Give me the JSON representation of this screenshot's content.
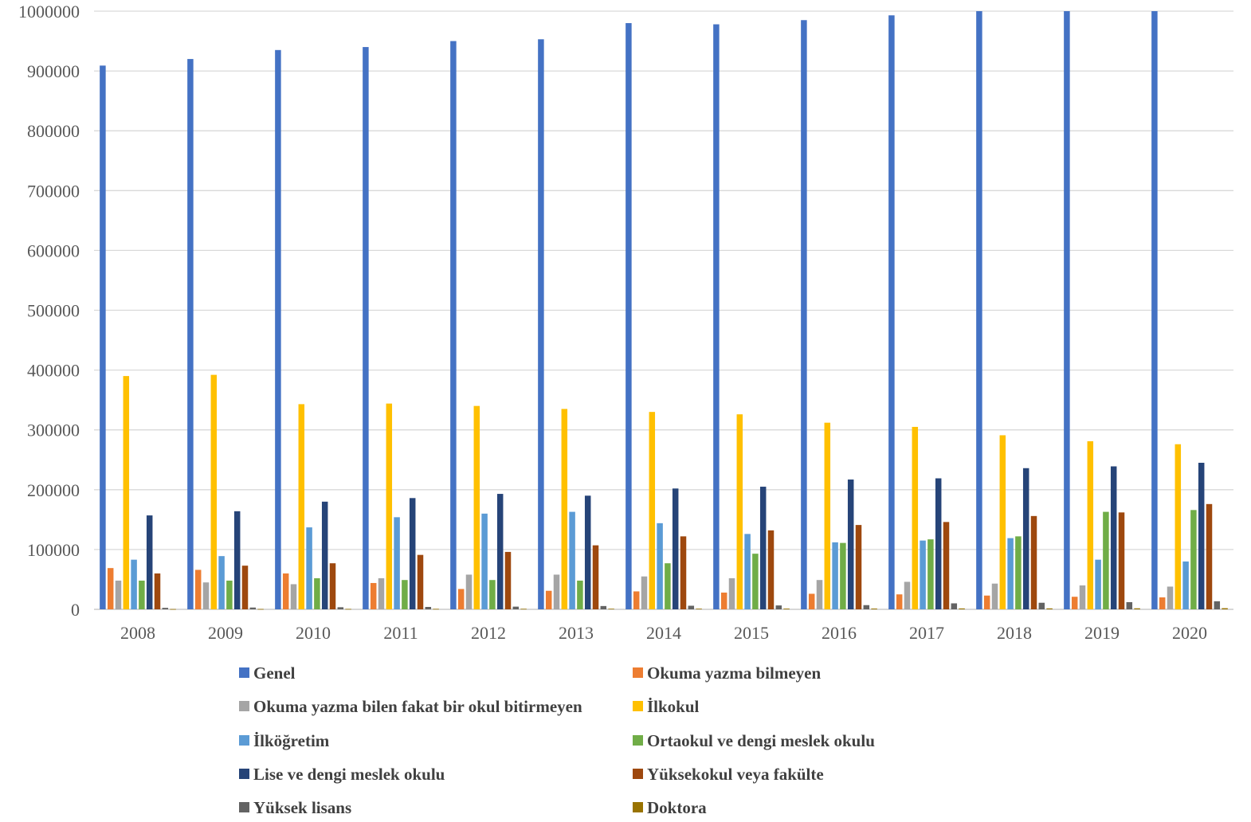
{
  "chart_data": {
    "type": "bar",
    "title": "",
    "xlabel": "",
    "ylabel": "",
    "ylim": [
      0,
      1000000
    ],
    "yticks": [
      "0",
      "100000",
      "200000",
      "300000",
      "400000",
      "500000",
      "600000",
      "700000",
      "800000",
      "900000",
      "1000000"
    ],
    "grid": "horizontal",
    "legend_position": "bottom",
    "categories": [
      "2008",
      "2009",
      "2010",
      "2011",
      "2012",
      "2013",
      "2014",
      "2015",
      "2016",
      "2017",
      "2018",
      "2019",
      "2020"
    ],
    "series": [
      {
        "name": "Genel",
        "color": "#4472C4",
        "values": [
          909000,
          920000,
          935000,
          940000,
          950000,
          953000,
          980000,
          978000,
          985000,
          993000,
          1000000,
          1000000,
          1000000
        ]
      },
      {
        "name": "Okuma yazma bilmeyen",
        "color": "#ED7D31",
        "values": [
          69000,
          66000,
          60000,
          44000,
          34000,
          31000,
          30000,
          28000,
          26000,
          25000,
          23000,
          21000,
          20000
        ]
      },
      {
        "name": "Okuma yazma bilen fakat bir okul bitirmeyen",
        "color": "#A5A5A5",
        "values": [
          48000,
          45000,
          42000,
          52000,
          58000,
          58000,
          55000,
          52000,
          49000,
          46000,
          43000,
          40000,
          38000
        ]
      },
      {
        "name": "İlkokul",
        "color": "#FFC000",
        "values": [
          390000,
          392000,
          343000,
          344000,
          340000,
          335000,
          330000,
          326000,
          312000,
          305000,
          291000,
          281000,
          276000
        ]
      },
      {
        "name": "İlköğretim",
        "color": "#5B9BD5",
        "values": [
          83000,
          89000,
          137000,
          154000,
          160000,
          163000,
          144000,
          126000,
          112000,
          115000,
          119000,
          83000,
          80000
        ]
      },
      {
        "name": "Ortaokul ve dengi meslek okulu",
        "color": "#70AD47",
        "values": [
          48000,
          48000,
          52000,
          49000,
          49000,
          48000,
          77000,
          93000,
          111000,
          117000,
          122000,
          163000,
          166000
        ]
      },
      {
        "name": "Lise ve dengi meslek okulu",
        "color": "#264478",
        "values": [
          157000,
          164000,
          180000,
          186000,
          193000,
          190000,
          202000,
          205000,
          217000,
          219000,
          236000,
          239000,
          245000
        ]
      },
      {
        "name": "Yüksekokul veya fakülte",
        "color": "#9E480E",
        "values": [
          60000,
          73000,
          77000,
          91000,
          96000,
          107000,
          122000,
          132000,
          141000,
          146000,
          156000,
          162000,
          176000
        ]
      },
      {
        "name": "Yüksek lisans",
        "color": "#636363",
        "values": [
          2500,
          3000,
          3500,
          4000,
          4500,
          5500,
          6000,
          6500,
          7000,
          10000,
          11000,
          12000,
          13500
        ]
      },
      {
        "name": "Doktora",
        "color": "#997300",
        "values": [
          500,
          600,
          700,
          800,
          900,
          1000,
          1100,
          1200,
          1300,
          1500,
          1600,
          1700,
          1900
        ]
      }
    ]
  }
}
